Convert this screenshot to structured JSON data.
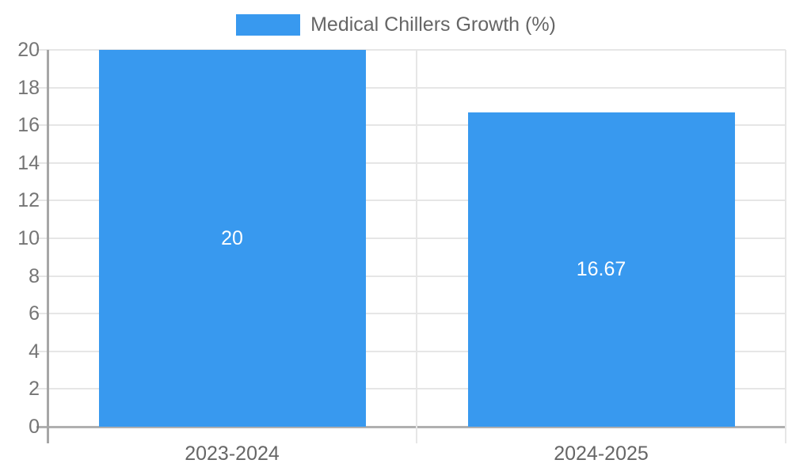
{
  "chart_data": {
    "type": "bar",
    "title": "",
    "legend_label": "Medical Chillers Growth (%)",
    "categories": [
      "2023-2024",
      "2024-2025"
    ],
    "values": [
      20,
      16.67
    ],
    "value_labels": [
      "20",
      "16.67"
    ],
    "yticks": [
      0,
      2,
      4,
      6,
      8,
      10,
      12,
      14,
      16,
      18,
      20
    ],
    "ylim": [
      0,
      20
    ],
    "grid": true,
    "legend_position": "top-center",
    "colors": {
      "bar": "#3899ef",
      "gridline": "#e6e6e6",
      "axis_line": "#a6a6a6",
      "zero_line": "#b0b0b0",
      "ytick_text": "#757575",
      "xtick_text": "#666666",
      "legend_text": "#666666",
      "bar_label_text": "#ffffff"
    }
  }
}
